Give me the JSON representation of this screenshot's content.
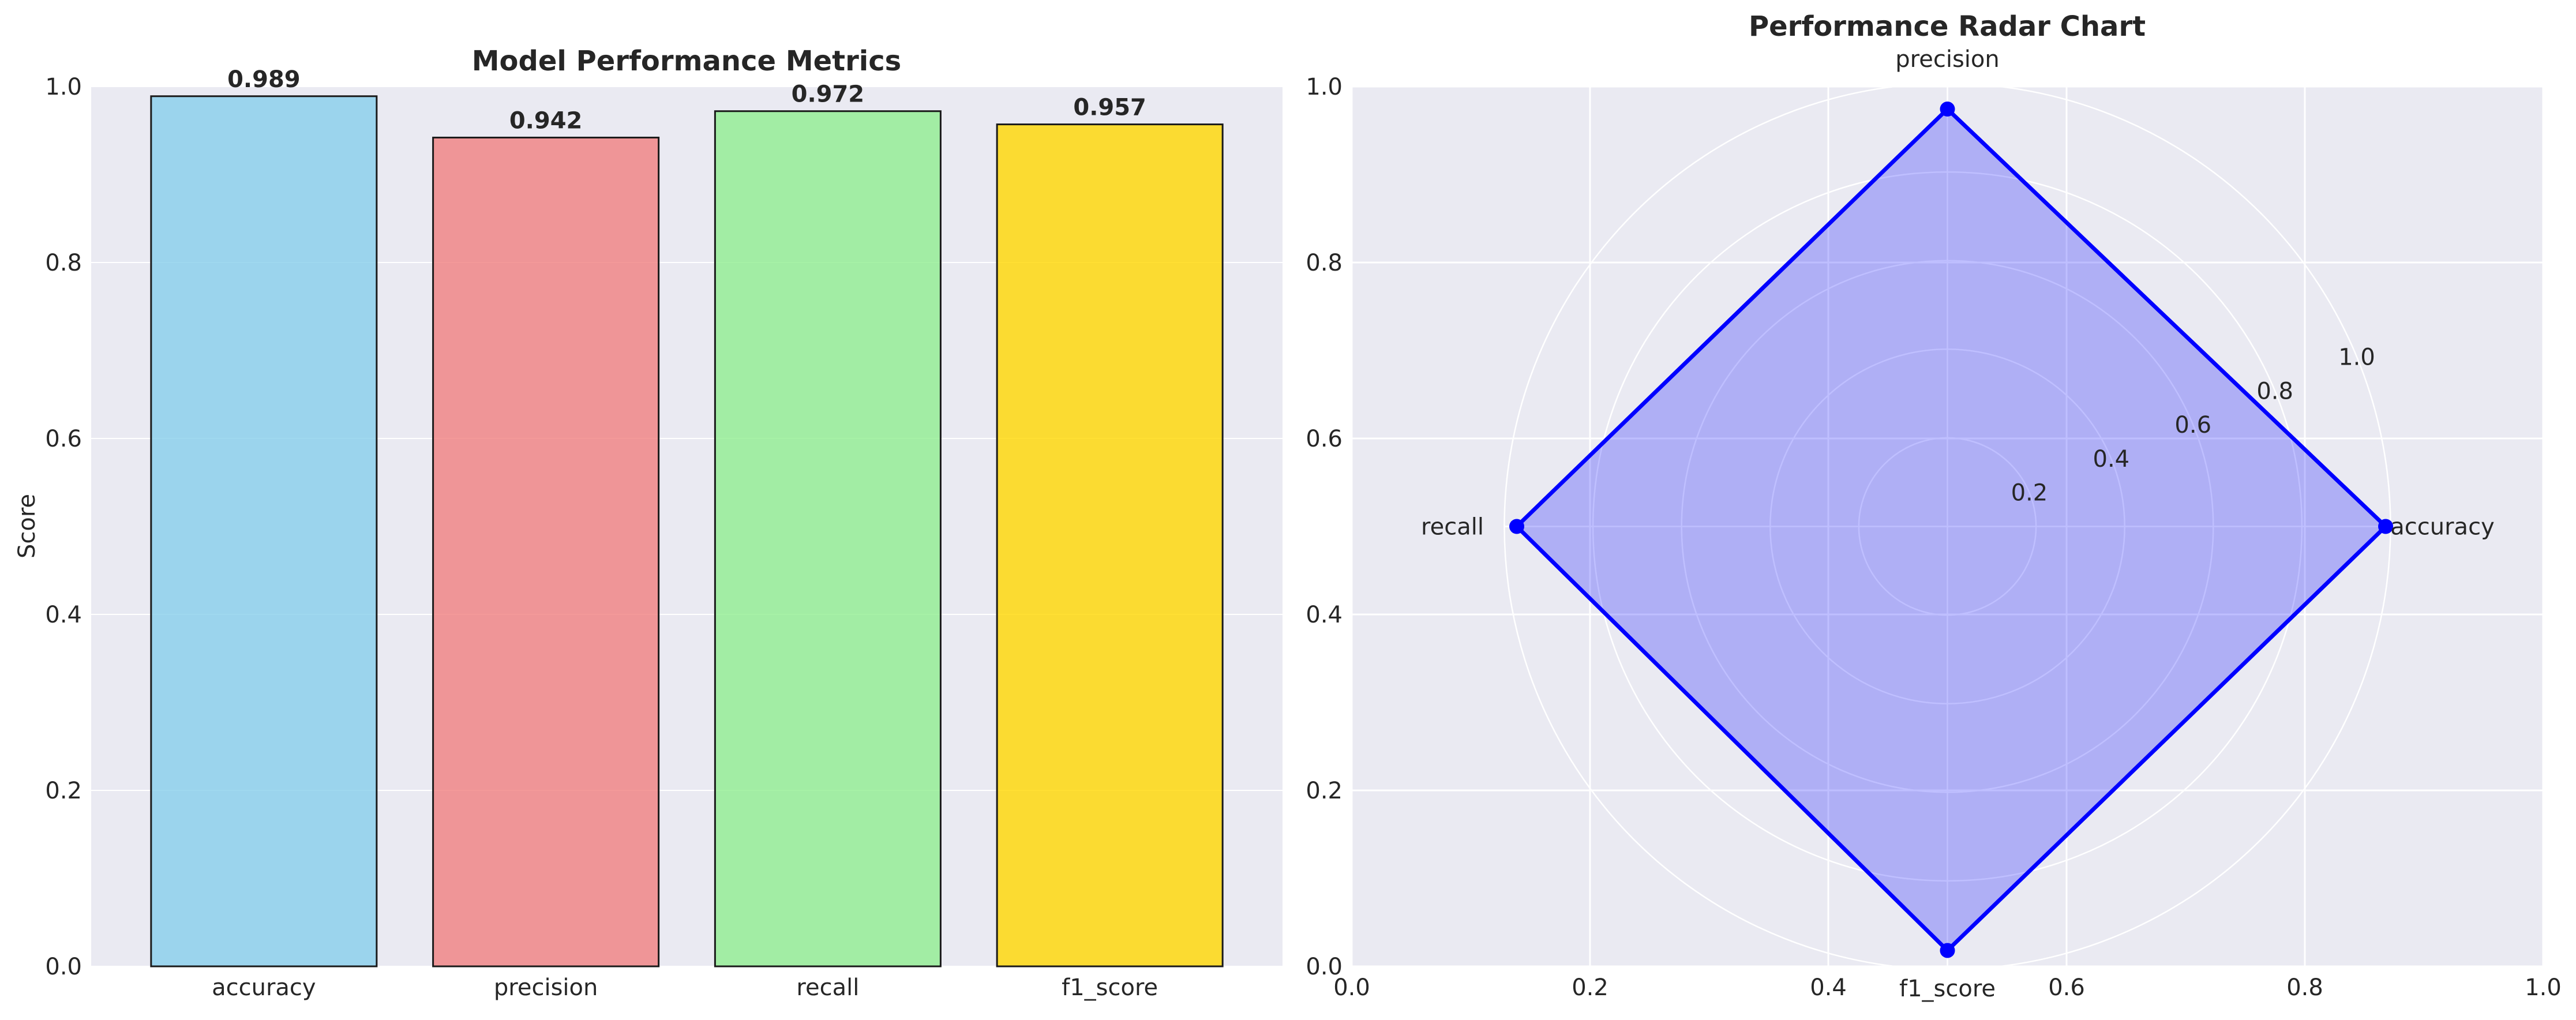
{
  "chart_data": [
    {
      "type": "bar",
      "title": "Model Performance Metrics",
      "xlabel": "",
      "ylabel": "Score",
      "ylim": [
        0,
        1.0
      ],
      "yticks": [
        "0.0",
        "0.2",
        "0.4",
        "0.6",
        "0.8",
        "1.0"
      ],
      "categories": [
        "accuracy",
        "precision",
        "recall",
        "f1_score"
      ],
      "values": [
        0.989,
        0.942,
        0.972,
        0.957
      ],
      "value_labels": [
        "0.989",
        "0.942",
        "0.972",
        "0.957"
      ],
      "colors": [
        "#87CEEB",
        "#F08080",
        "#90EE90",
        "#FFD700"
      ],
      "grid": true
    },
    {
      "type": "radar",
      "title": "Performance Radar Chart",
      "axes": [
        "accuracy",
        "precision",
        "recall",
        "f1_score"
      ],
      "values": [
        0.989,
        0.942,
        0.972,
        0.957
      ],
      "radial_ticks": [
        "0.2",
        "0.4",
        "0.6",
        "0.8",
        "1.0"
      ],
      "radial_range": [
        0,
        1.0
      ],
      "cartesian_xticks": [
        "0.0",
        "0.2",
        "0.4",
        "0.6",
        "0.8",
        "1.0"
      ],
      "cartesian_yticks": [
        "0.0",
        "0.2",
        "0.4",
        "0.6",
        "0.8",
        "1.0"
      ],
      "line_color": "#0000FF",
      "fill_color": "#0000FF",
      "grid": true
    }
  ],
  "colors": {
    "axes_bg": "#EAEAF2",
    "grid": "#FFFFFF",
    "edge": "#1a1a1a"
  }
}
